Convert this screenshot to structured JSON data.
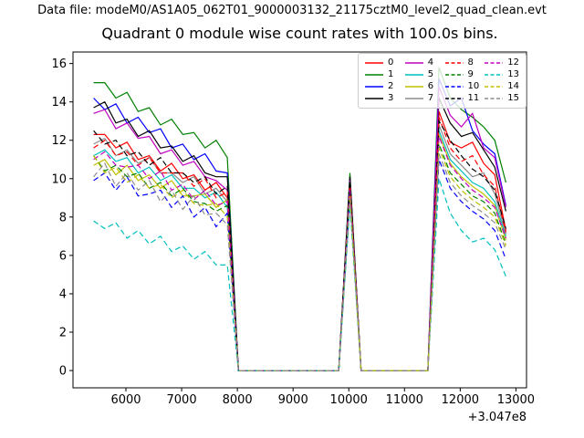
{
  "figure": {
    "background": "#ffffff",
    "data_file_label": "Data file: modeM0/AS1A05_062T01_9000003132_21175cztM0_level2_quad_clean.evt"
  },
  "chart_data": {
    "type": "line",
    "title": "Quadrant 0 module wise count rates with 100.0s bins.",
    "xlabel": "",
    "ylabel": "",
    "x_offset_text": "+3.047e8",
    "xlim": [
      5050,
      13190
    ],
    "ylim": [
      -0.9,
      16.6
    ],
    "xticks": [
      6000,
      7000,
      8000,
      9000,
      10000,
      11000,
      12000,
      13000
    ],
    "yticks": [
      0,
      2,
      4,
      6,
      8,
      10,
      12,
      14,
      16
    ],
    "grid": false,
    "frame_color": "#000000",
    "legend": {
      "position": "upper right",
      "columns": 4,
      "border_color": "#cccccc"
    },
    "x": [
      5420,
      5620,
      5820,
      6020,
      6220,
      6420,
      6620,
      6820,
      7020,
      7220,
      7420,
      7620,
      7820,
      8020,
      8220,
      8420,
      8620,
      8820,
      9020,
      9220,
      9420,
      9620,
      9820,
      10020,
      10220,
      10420,
      10620,
      10820,
      11020,
      11220,
      11420,
      11620,
      11820,
      12020,
      12220,
      12420,
      12620,
      12820
    ],
    "series": [
      {
        "name": "0",
        "color": "#ff0000",
        "dash": false,
        "values": [
          12.3,
          12.3,
          11.6,
          11.9,
          11.0,
          11.2,
          10.4,
          10.8,
          10.0,
          10.2,
          9.4,
          9.8,
          9.0,
          0,
          0,
          0,
          0,
          0,
          0,
          0,
          0,
          0,
          0,
          9.8,
          0,
          0,
          0,
          0,
          0,
          0,
          0,
          13.5,
          11.9,
          11.6,
          11.9,
          10.8,
          10.2,
          7.3
        ]
      },
      {
        "name": "1",
        "color": "#008000",
        "dash": false,
        "values": [
          15.0,
          15.0,
          14.2,
          14.5,
          13.5,
          13.7,
          12.8,
          13.1,
          12.3,
          12.4,
          11.6,
          12.0,
          11.1,
          0,
          0,
          0,
          0,
          0,
          0,
          0,
          0,
          0,
          0,
          10.3,
          0,
          0,
          0,
          0,
          0,
          0,
          0,
          15.8,
          14.2,
          13.6,
          13.2,
          12.7,
          12.0,
          9.8
        ]
      },
      {
        "name": "2",
        "color": "#0000ff",
        "dash": false,
        "values": [
          14.2,
          13.6,
          13.9,
          12.9,
          13.2,
          12.4,
          12.6,
          11.6,
          11.8,
          11.0,
          11.3,
          10.4,
          10.3,
          0,
          0,
          0,
          0,
          0,
          0,
          0,
          0,
          0,
          0,
          10.0,
          0,
          0,
          0,
          0,
          0,
          0,
          0,
          15.2,
          13.8,
          14.2,
          12.5,
          11.8,
          11.3,
          8.6
        ]
      },
      {
        "name": "3",
        "color": "#000000",
        "dash": false,
        "values": [
          13.7,
          14.0,
          12.9,
          13.1,
          12.2,
          12.5,
          11.6,
          11.7,
          10.9,
          11.2,
          10.3,
          10.1,
          10.1,
          0,
          0,
          0,
          0,
          0,
          0,
          0,
          0,
          0,
          0,
          10.1,
          0,
          0,
          0,
          0,
          0,
          0,
          0,
          14.2,
          12.9,
          12.2,
          12.4,
          11.5,
          10.6,
          8.3
        ]
      },
      {
        "name": "4",
        "color": "#bf00bf",
        "dash": false,
        "values": [
          13.4,
          13.6,
          12.6,
          12.9,
          12.1,
          12.2,
          11.3,
          11.5,
          10.7,
          10.9,
          10.1,
          9.9,
          9.4,
          0,
          0,
          0,
          0,
          0,
          0,
          0,
          0,
          0,
          0,
          9.9,
          0,
          0,
          0,
          0,
          0,
          0,
          0,
          14.8,
          13.3,
          12.7,
          13.4,
          11.6,
          11.1,
          8.5
        ]
      },
      {
        "name": "5",
        "color": "#00bfbf",
        "dash": false,
        "values": [
          11.2,
          11.5,
          10.9,
          11.1,
          10.3,
          10.6,
          9.9,
          10.2,
          9.5,
          9.5,
          9.0,
          9.3,
          8.5,
          0,
          0,
          0,
          0,
          0,
          0,
          0,
          0,
          0,
          0,
          9.4,
          0,
          0,
          0,
          0,
          0,
          0,
          0,
          12.5,
          11.0,
          10.4,
          9.8,
          9.5,
          8.8,
          7.0
        ]
      },
      {
        "name": "6",
        "color": "#bfbf00",
        "dash": false,
        "values": [
          10.7,
          11.0,
          10.2,
          10.7,
          9.9,
          10.2,
          9.5,
          9.9,
          9.1,
          9.1,
          9.2,
          8.5,
          8.9,
          0,
          0,
          0,
          0,
          0,
          0,
          0,
          0,
          0,
          0,
          9.3,
          0,
          0,
          0,
          0,
          0,
          0,
          0,
          12.3,
          10.8,
          10.1,
          9.6,
          9.2,
          8.6,
          6.8
        ]
      },
      {
        "name": "7",
        "color": "#8c8c8c",
        "dash": false,
        "values": [
          11.8,
          12.1,
          11.2,
          11.5,
          10.8,
          11.1,
          10.3,
          10.3,
          9.8,
          10.1,
          9.2,
          9.5,
          8.8,
          0,
          0,
          0,
          0,
          0,
          0,
          0,
          0,
          0,
          0,
          9.6,
          0,
          0,
          0,
          0,
          0,
          0,
          0,
          12.8,
          11.3,
          10.7,
          10.1,
          10.3,
          9.2,
          7.1
        ]
      },
      {
        "name": "8",
        "color": "#ff0000",
        "dash": true,
        "values": [
          11.6,
          12.0,
          11.2,
          11.4,
          10.7,
          11.1,
          10.3,
          10.3,
          10.3,
          9.6,
          10.0,
          9.0,
          9.3,
          0,
          0,
          0,
          0,
          0,
          0,
          0,
          0,
          0,
          0,
          9.7,
          0,
          0,
          0,
          0,
          0,
          0,
          0,
          13.2,
          11.6,
          10.9,
          11.2,
          10.2,
          9.6,
          7.2
        ]
      },
      {
        "name": "9",
        "color": "#008000",
        "dash": true,
        "values": [
          11.2,
          10.4,
          10.7,
          10.1,
          10.3,
          9.5,
          9.8,
          9.1,
          9.5,
          8.8,
          8.7,
          8.3,
          8.6,
          0,
          0,
          0,
          0,
          0,
          0,
          0,
          0,
          0,
          0,
          9.2,
          0,
          0,
          0,
          0,
          0,
          0,
          0,
          11.8,
          10.3,
          9.7,
          9.1,
          8.8,
          8.2,
          6.6
        ]
      },
      {
        "name": "10",
        "color": "#0000ff",
        "dash": true,
        "values": [
          9.9,
          10.3,
          9.4,
          10.1,
          9.1,
          9.2,
          9.4,
          8.5,
          9.1,
          8.0,
          8.5,
          7.5,
          8.2,
          0,
          0,
          0,
          0,
          0,
          0,
          0,
          0,
          0,
          0,
          8.9,
          0,
          0,
          0,
          0,
          0,
          0,
          0,
          11.0,
          9.5,
          8.8,
          8.3,
          7.9,
          7.3,
          5.8
        ]
      },
      {
        "name": "11",
        "color": "#000000",
        "dash": true,
        "values": [
          12.5,
          11.8,
          12.0,
          11.2,
          11.4,
          10.7,
          11.1,
          10.3,
          10.3,
          9.8,
          10.1,
          9.2,
          9.6,
          0,
          0,
          0,
          0,
          0,
          0,
          0,
          0,
          0,
          0,
          9.9,
          0,
          0,
          0,
          0,
          0,
          0,
          0,
          13.0,
          12.0,
          11.2,
          10.5,
          10.1,
          9.4,
          7.4
        ]
      },
      {
        "name": "12",
        "color": "#bf00bf",
        "dash": true,
        "values": [
          11.0,
          11.4,
          10.7,
          10.6,
          10.7,
          10.0,
          10.4,
          9.4,
          9.7,
          8.9,
          9.4,
          8.6,
          8.8,
          0,
          0,
          0,
          0,
          0,
          0,
          0,
          0,
          0,
          0,
          9.4,
          0,
          0,
          0,
          0,
          0,
          0,
          0,
          12.2,
          10.7,
          10.0,
          9.4,
          9.0,
          8.5,
          6.9
        ]
      },
      {
        "name": "13",
        "color": "#00bfbf",
        "dash": true,
        "values": [
          7.8,
          7.4,
          7.7,
          6.9,
          7.3,
          6.6,
          7.0,
          6.2,
          6.5,
          5.8,
          6.2,
          5.5,
          5.5,
          0,
          0,
          0,
          0,
          0,
          0,
          0,
          0,
          0,
          0,
          8.6,
          0,
          0,
          0,
          0,
          0,
          0,
          0,
          10.0,
          8.2,
          7.3,
          6.7,
          6.9,
          6.3,
          4.9
        ]
      },
      {
        "name": "14",
        "color": "#bfbf00",
        "dash": true,
        "values": [
          11.2,
          10.3,
          10.6,
          9.8,
          10.2,
          9.5,
          9.7,
          9.0,
          9.4,
          8.7,
          8.6,
          8.7,
          8.0,
          0,
          0,
          0,
          0,
          0,
          0,
          0,
          0,
          0,
          0,
          9.1,
          0,
          0,
          0,
          0,
          0,
          0,
          0,
          11.6,
          10.1,
          9.4,
          8.9,
          8.5,
          8.0,
          6.5
        ]
      },
      {
        "name": "15",
        "color": "#8c8c8c",
        "dash": true,
        "values": [
          10.1,
          10.8,
          9.6,
          10.3,
          9.4,
          9.9,
          8.8,
          9.4,
          8.4,
          9.1,
          8.1,
          8.2,
          7.6,
          0,
          0,
          0,
          0,
          0,
          0,
          0,
          0,
          0,
          0,
          9.0,
          0,
          0,
          0,
          0,
          0,
          0,
          0,
          11.3,
          9.8,
          9.1,
          8.6,
          8.2,
          7.7,
          6.3
        ]
      }
    ]
  }
}
